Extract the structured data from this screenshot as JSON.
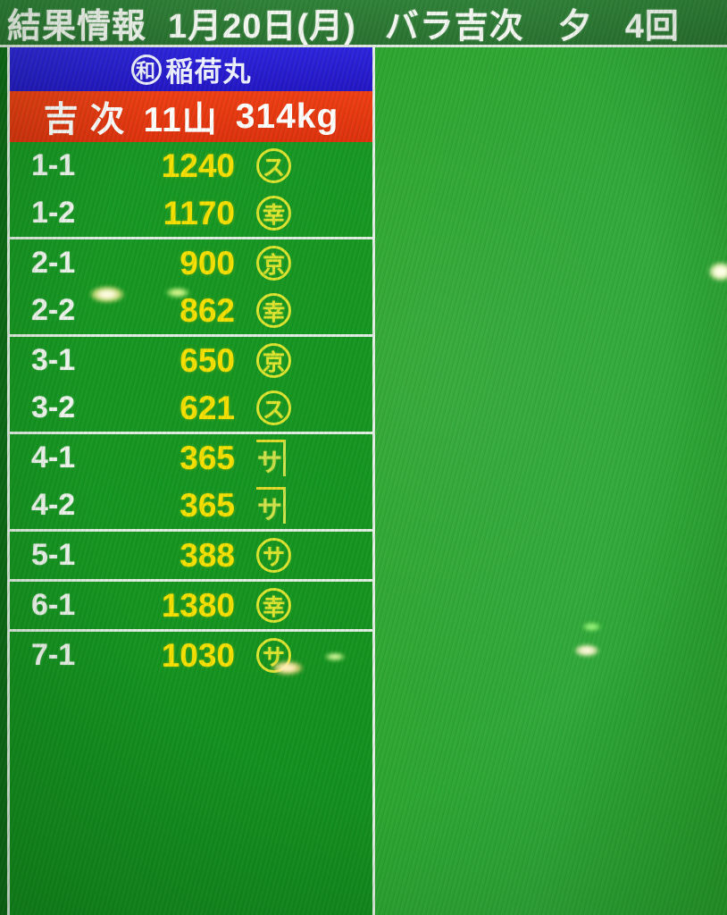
{
  "header": {
    "title": "結果情報",
    "date": "1月20日(月)",
    "item": "バラ吉次",
    "session": "夕",
    "round": "4回"
  },
  "panel": {
    "boat": {
      "mark_char": "和",
      "name": "稲荷丸"
    },
    "summary": {
      "fish": "吉 次",
      "piles": "11山",
      "weight": "314kg"
    },
    "groups": [
      {
        "rows": [
          {
            "lot": "1-1",
            "price": "1240",
            "buyer_mark": "ス",
            "mark_type": "circle"
          },
          {
            "lot": "1-2",
            "price": "1170",
            "buyer_mark": "幸",
            "mark_type": "circle"
          }
        ]
      },
      {
        "rows": [
          {
            "lot": "2-1",
            "price": "900",
            "buyer_mark": "京",
            "mark_type": "circle"
          },
          {
            "lot": "2-2",
            "price": "862",
            "buyer_mark": "幸",
            "mark_type": "circle"
          }
        ]
      },
      {
        "rows": [
          {
            "lot": "3-1",
            "price": "650",
            "buyer_mark": "京",
            "mark_type": "circle"
          },
          {
            "lot": "3-2",
            "price": "621",
            "buyer_mark": "ス",
            "mark_type": "circle"
          }
        ]
      },
      {
        "rows": [
          {
            "lot": "4-1",
            "price": "365",
            "buyer_mark": "サ",
            "mark_type": "kane"
          },
          {
            "lot": "4-2",
            "price": "365",
            "buyer_mark": "サ",
            "mark_type": "kane"
          }
        ]
      },
      {
        "rows": [
          {
            "lot": "5-1",
            "price": "388",
            "buyer_mark": "サ",
            "mark_type": "circle"
          }
        ]
      },
      {
        "rows": [
          {
            "lot": "6-1",
            "price": "1380",
            "buyer_mark": "幸",
            "mark_type": "circle"
          }
        ]
      },
      {
        "rows": [
          {
            "lot": "7-1",
            "price": "1030",
            "buyer_mark": "サ",
            "mark_type": "circle"
          }
        ]
      }
    ]
  },
  "colors": {
    "screen_bg": "#2aa42c",
    "header_bg": "#2c7a33",
    "panel_bg": "#14941f",
    "boat_bar_bg": "#2518cc",
    "summary_bar_bg": "#e6370f",
    "price_yellow": "#f6df00",
    "mark_yellow": "#dde32e",
    "line_white": "#e2ece2"
  }
}
